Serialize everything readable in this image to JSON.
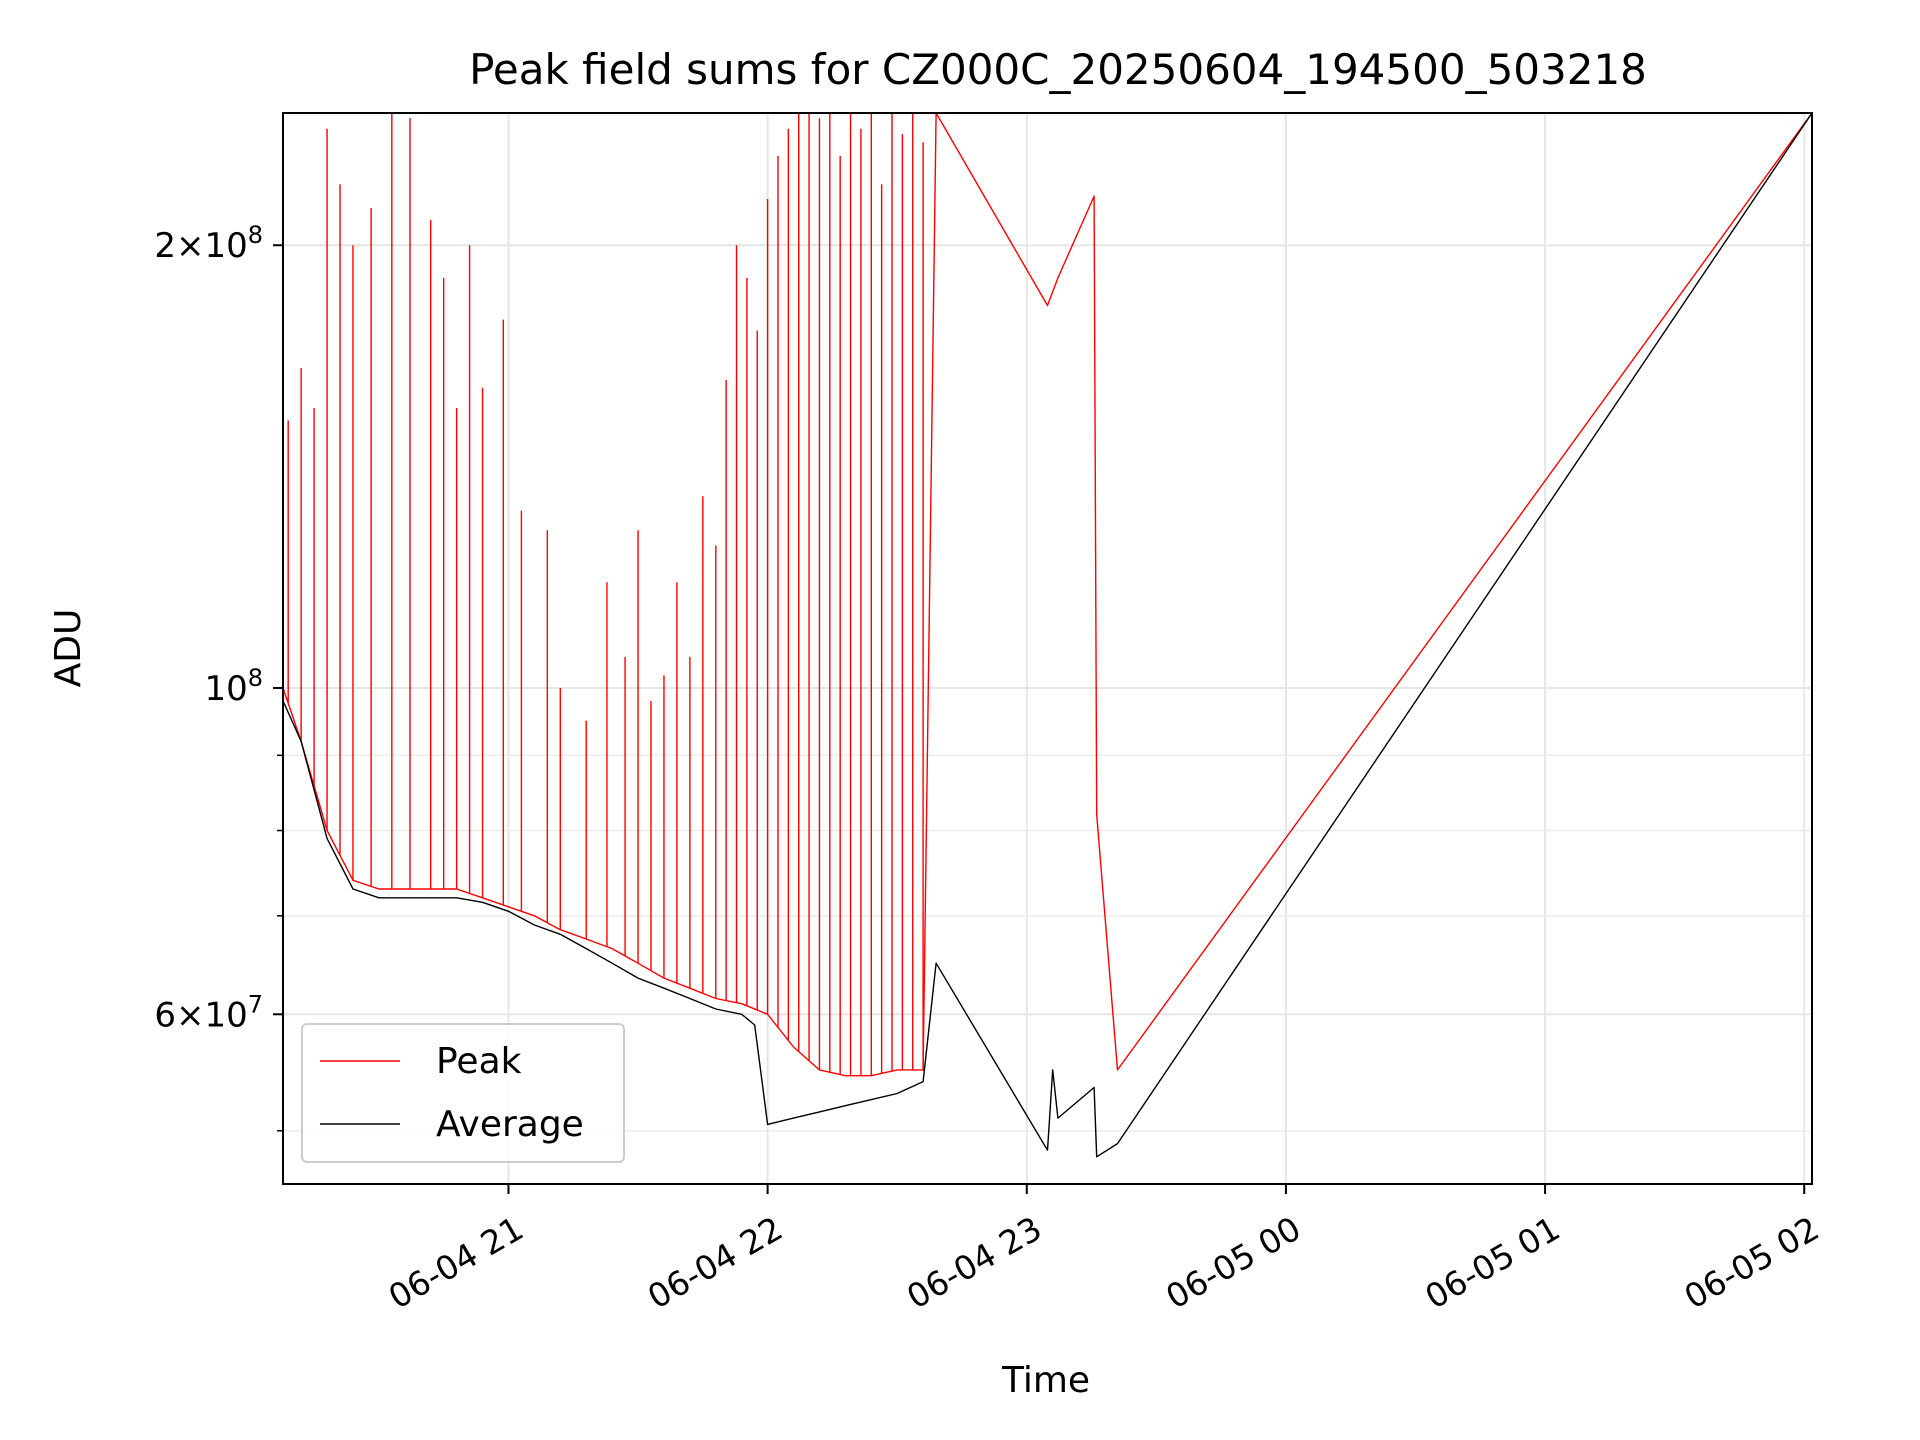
{
  "chart_data": {
    "type": "line",
    "title": "Peak field sums for CZ000C_20250604_194500_503218",
    "xlabel": "Time",
    "ylabel": "ADU",
    "y_scale": "log",
    "xlim_hours": [
      20.13,
      26.03
    ],
    "ylim": [
      46000000,
      246000000
    ],
    "x_ticks": [
      {
        "hour": 21,
        "label": "06-04 21"
      },
      {
        "hour": 22,
        "label": "06-04 22"
      },
      {
        "hour": 23,
        "label": "06-04 23"
      },
      {
        "hour": 24,
        "label": "06-05 00"
      },
      {
        "hour": 25,
        "label": "06-05 01"
      },
      {
        "hour": 26,
        "label": "06-05 02"
      }
    ],
    "y_major_ticks": [
      {
        "value": 60000000,
        "mantissa": "6",
        "exponent": "7"
      },
      {
        "value": 100000000,
        "mantissa": "",
        "exponent": "8"
      },
      {
        "value": 200000000,
        "mantissa": "2",
        "exponent": "8"
      }
    ],
    "y_minor_ticks": [
      50000000,
      70000000,
      80000000,
      90000000,
      300000000
    ],
    "grid": true,
    "legend_position": "lower-left",
    "series": [
      {
        "name": "Peak",
        "color": "#ff0000",
        "x_hours": [
          20.13,
          20.2,
          20.3,
          20.4,
          20.5,
          20.6,
          20.7,
          20.8,
          20.9,
          21.0,
          21.1,
          21.2,
          21.3,
          21.4,
          21.5,
          21.6,
          21.7,
          21.8,
          21.9,
          22.0,
          22.1,
          22.2,
          22.3,
          22.4,
          22.5,
          22.6,
          22.65,
          23.08,
          23.12,
          23.26,
          23.27,
          23.35,
          26.03
        ],
        "values": [
          100000000,
          92000000,
          80000000,
          74000000,
          73000000,
          73000000,
          73000000,
          73000000,
          72000000,
          71000000,
          70000000,
          68500000,
          67500000,
          66500000,
          65000000,
          63500000,
          62500000,
          61500000,
          61000000,
          60000000,
          57000000,
          55000000,
          54500000,
          54500000,
          55000000,
          55000000,
          246000000,
          182000000,
          190000000,
          216000000,
          82000000,
          55000000,
          246000000
        ],
        "spikes": [
          {
            "hour": 20.15,
            "value": 152000000
          },
          {
            "hour": 20.2,
            "value": 165000000
          },
          {
            "hour": 20.25,
            "value": 155000000
          },
          {
            "hour": 20.3,
            "value": 240000000
          },
          {
            "hour": 20.35,
            "value": 220000000
          },
          {
            "hour": 20.4,
            "value": 200000000
          },
          {
            "hour": 20.47,
            "value": 212000000
          },
          {
            "hour": 20.55,
            "value": 246000000
          },
          {
            "hour": 20.62,
            "value": 244000000
          },
          {
            "hour": 20.7,
            "value": 208000000
          },
          {
            "hour": 20.75,
            "value": 190000000
          },
          {
            "hour": 20.8,
            "value": 155000000
          },
          {
            "hour": 20.85,
            "value": 200000000
          },
          {
            "hour": 20.9,
            "value": 160000000
          },
          {
            "hour": 20.98,
            "value": 178000000
          },
          {
            "hour": 21.05,
            "value": 132000000
          },
          {
            "hour": 21.15,
            "value": 128000000
          },
          {
            "hour": 21.2,
            "value": 100000000
          },
          {
            "hour": 21.3,
            "value": 95000000
          },
          {
            "hour": 21.38,
            "value": 118000000
          },
          {
            "hour": 21.45,
            "value": 105000000
          },
          {
            "hour": 21.5,
            "value": 128000000
          },
          {
            "hour": 21.55,
            "value": 98000000
          },
          {
            "hour": 21.6,
            "value": 102000000
          },
          {
            "hour": 21.65,
            "value": 118000000
          },
          {
            "hour": 21.7,
            "value": 105000000
          },
          {
            "hour": 21.75,
            "value": 135000000
          },
          {
            "hour": 21.8,
            "value": 125000000
          },
          {
            "hour": 21.84,
            "value": 162000000
          },
          {
            "hour": 21.88,
            "value": 200000000
          },
          {
            "hour": 21.92,
            "value": 190000000
          },
          {
            "hour": 21.96,
            "value": 175000000
          },
          {
            "hour": 22.0,
            "value": 215000000
          },
          {
            "hour": 22.04,
            "value": 230000000
          },
          {
            "hour": 22.08,
            "value": 240000000
          },
          {
            "hour": 22.12,
            "value": 246000000
          },
          {
            "hour": 22.16,
            "value": 246000000
          },
          {
            "hour": 22.2,
            "value": 244000000
          },
          {
            "hour": 22.24,
            "value": 246000000
          },
          {
            "hour": 22.28,
            "value": 230000000
          },
          {
            "hour": 22.32,
            "value": 246000000
          },
          {
            "hour": 22.36,
            "value": 240000000
          },
          {
            "hour": 22.4,
            "value": 246000000
          },
          {
            "hour": 22.44,
            "value": 220000000
          },
          {
            "hour": 22.48,
            "value": 246000000
          },
          {
            "hour": 22.52,
            "value": 238000000
          },
          {
            "hour": 22.56,
            "value": 246000000
          },
          {
            "hour": 22.6,
            "value": 235000000
          }
        ]
      },
      {
        "name": "Average",
        "color": "#000000",
        "x_hours": [
          20.13,
          20.2,
          20.3,
          20.4,
          20.5,
          20.6,
          20.7,
          20.8,
          20.9,
          21.0,
          21.1,
          21.2,
          21.3,
          21.4,
          21.5,
          21.6,
          21.7,
          21.8,
          21.9,
          21.95,
          22.0,
          22.1,
          22.2,
          22.3,
          22.4,
          22.5,
          22.6,
          22.65,
          23.08,
          23.1,
          23.12,
          23.26,
          23.27,
          23.35,
          26.03
        ],
        "values": [
          98000000,
          92000000,
          79000000,
          73000000,
          72000000,
          72000000,
          72000000,
          72000000,
          71500000,
          70500000,
          69000000,
          68000000,
          66500000,
          65000000,
          63500000,
          62500000,
          61500000,
          60500000,
          60000000,
          59000000,
          50500000,
          51000000,
          51500000,
          52000000,
          52500000,
          53000000,
          54000000,
          65000000,
          48500000,
          55000000,
          51000000,
          53500000,
          48000000,
          49000000,
          246000000
        ]
      }
    ]
  }
}
